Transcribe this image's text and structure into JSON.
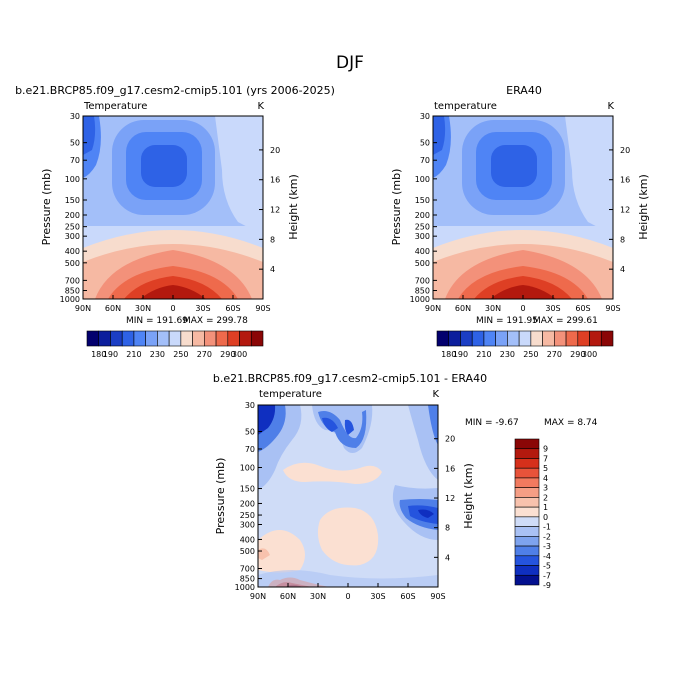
{
  "title": "DJF",
  "chart_data": [
    {
      "type": "heatmap",
      "label": "b.e21.BRCP85.f09_g17.cesm2-cmip5.101 (yrs 2006-2025)",
      "subtitle": "Temperature",
      "units": "K",
      "xlabel": "",
      "ylabel": "Pressure (mb)",
      "ylabel_right": "Height (km)",
      "x_ticks": [
        "90N",
        "60N",
        "30N",
        "0",
        "30S",
        "60S",
        "90S"
      ],
      "y_ticks": [
        "30",
        "50",
        "70",
        "100",
        "150",
        "200",
        "250",
        "300",
        "400",
        "500",
        "700",
        "850",
        "1000"
      ],
      "y_ticks_right": [
        "20",
        "16",
        "12",
        "8",
        "4"
      ],
      "min_label": "MIN = 191.69",
      "max_label": "MAX = 299.78",
      "colorbar": [
        "180",
        "190",
        "200",
        "210",
        "220",
        "230",
        "240",
        "250",
        "260",
        "270",
        "280",
        "290",
        "300"
      ],
      "colorbar_labels": [
        "180",
        "190",
        "210",
        "230",
        "250",
        "270",
        "290",
        "300"
      ]
    },
    {
      "type": "heatmap",
      "label": "ERA40",
      "subtitle": "temperature",
      "units": "K",
      "xlabel": "",
      "ylabel": "Pressure (mb)",
      "ylabel_right": "Height (km)",
      "x_ticks": [
        "90N",
        "60N",
        "30N",
        "0",
        "30S",
        "60S",
        "90S"
      ],
      "y_ticks": [
        "30",
        "50",
        "70",
        "100",
        "150",
        "200",
        "250",
        "300",
        "400",
        "500",
        "700",
        "850",
        "1000"
      ],
      "y_ticks_right": [
        "20",
        "16",
        "12",
        "8",
        "4"
      ],
      "min_label": "MIN = 191.95",
      "max_label": "MAX = 299.61",
      "colorbar": [
        "180",
        "190",
        "200",
        "210",
        "220",
        "230",
        "240",
        "250",
        "260",
        "270",
        "280",
        "290",
        "300"
      ],
      "colorbar_labels": [
        "180",
        "190",
        "210",
        "230",
        "250",
        "270",
        "290",
        "300"
      ]
    },
    {
      "type": "heatmap",
      "label": "b.e21.BRCP85.f09_g17.cesm2-cmip5.101 - ERA40",
      "subtitle": "temperature",
      "units": "K",
      "xlabel": "",
      "ylabel": "Pressure (mb)",
      "ylabel_right": "Height (km)",
      "x_ticks": [
        "90N",
        "60N",
        "30N",
        "0",
        "30S",
        "60S",
        "90S"
      ],
      "y_ticks": [
        "30",
        "50",
        "70",
        "100",
        "150",
        "200",
        "250",
        "300",
        "400",
        "500",
        "700",
        "850",
        "1000"
      ],
      "y_ticks_right": [
        "20",
        "16",
        "12",
        "8",
        "4"
      ],
      "min_label": "MIN =   -9.67",
      "max_label": "MAX =    8.74",
      "colorbar_labels": [
        "9",
        "7",
        "5",
        "4",
        "3",
        "2",
        "1",
        "0",
        "-1",
        "-2",
        "-3",
        "-4",
        "-5",
        "-7",
        "-9"
      ]
    }
  ],
  "colors": {
    "temp_scale": [
      "#03006e",
      "#0c1e9c",
      "#1b3ec4",
      "#2e62e6",
      "#4f84f5",
      "#7aa2f7",
      "#a3bff9",
      "#c9d9fb",
      "#f7dccd",
      "#f6b9a3",
      "#f3917a",
      "#ee6a4c",
      "#de3f24",
      "#b3190e",
      "#8a0606"
    ],
    "diff_scale": [
      "#8a0606",
      "#b3190e",
      "#d6301b",
      "#e8533a",
      "#f17a5f",
      "#f59e85",
      "#f8c2ad",
      "#fbe0d2",
      "#cfdcf7",
      "#a9c1f4",
      "#7ea3ee",
      "#4f7fe8",
      "#2554de",
      "#0f2fc0",
      "#03108f"
    ]
  }
}
